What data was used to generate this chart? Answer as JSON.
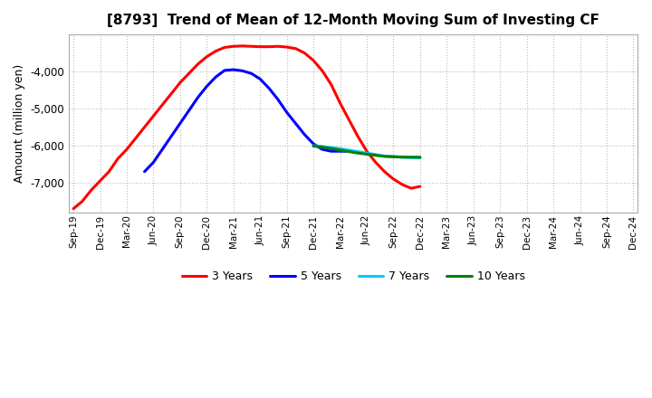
{
  "title": "[8793]  Trend of Mean of 12-Month Moving Sum of Investing CF",
  "ylabel": "Amount (million yen)",
  "background_color": "#ffffff",
  "grid_color": "#bbbbbb",
  "ylim": [
    -7800,
    -3000
  ],
  "yticks": [
    -7000,
    -6000,
    -5000,
    -4000
  ],
  "series": {
    "3 Years": {
      "color": "#ff0000",
      "x_start_idx": 0,
      "data": [
        -7700,
        -7500,
        -7200,
        -6950,
        -6700,
        -6350,
        -6100,
        -5800,
        -5500,
        -5200,
        -4900,
        -4600,
        -4300,
        -4050,
        -3800,
        -3600,
        -3450,
        -3350,
        -3320,
        -3310,
        -3320,
        -3330,
        -3330,
        -3320,
        -3340,
        -3380,
        -3500,
        -3700,
        -3980,
        -4350,
        -4850,
        -5300,
        -5750,
        -6150,
        -6450,
        -6700,
        -6900,
        -7050,
        -7150,
        -7100
      ]
    },
    "5 Years": {
      "color": "#0000ff",
      "x_start_idx": 8,
      "data": [
        -6700,
        -6450,
        -6100,
        -5750,
        -5400,
        -5050,
        -4700,
        -4400,
        -4150,
        -3970,
        -3950,
        -3980,
        -4050,
        -4200,
        -4450,
        -4750,
        -5100,
        -5400,
        -5700,
        -5950,
        -6100,
        -6150,
        -6150,
        -6150
      ]
    },
    "7 Years": {
      "color": "#00ccff",
      "x_start_idx": 27,
      "data": [
        -6000,
        -6020,
        -6050,
        -6080,
        -6120,
        -6160,
        -6200,
        -6240,
        -6280,
        -6290,
        -6310,
        -6320,
        -6330
      ]
    },
    "10 Years": {
      "color": "#008000",
      "x_start_idx": 27,
      "data": [
        -6010,
        -6040,
        -6080,
        -6120,
        -6160,
        -6200,
        -6230,
        -6260,
        -6290,
        -6300,
        -6310,
        -6310,
        -6310
      ]
    }
  },
  "xtick_labels": [
    "Sep-19",
    "Dec-19",
    "Mar-20",
    "Jun-20",
    "Sep-20",
    "Dec-20",
    "Mar-21",
    "Jun-21",
    "Sep-21",
    "Dec-21",
    "Mar-22",
    "Jun-22",
    "Sep-22",
    "Dec-22",
    "Mar-23",
    "Jun-23",
    "Sep-23",
    "Dec-23",
    "Mar-24",
    "Jun-24",
    "Sep-24",
    "Dec-24"
  ],
  "xtick_positions": [
    0,
    3,
    6,
    9,
    12,
    15,
    18,
    21,
    24,
    27,
    30,
    33,
    36,
    39,
    42,
    45,
    48,
    51,
    54,
    57,
    60,
    63
  ],
  "total_points": 64,
  "linewidth": 2.2
}
